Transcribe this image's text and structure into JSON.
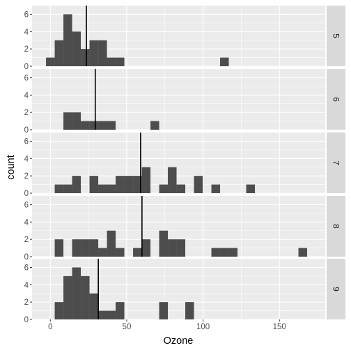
{
  "chart_data": {
    "type": "histogram",
    "facet_direction": "rows",
    "xlabel": "Ozone",
    "ylabel": "count",
    "xlim": [
      -12,
      180
    ],
    "x_ticks": [
      0,
      50,
      100,
      150
    ],
    "y_ticks": [
      0,
      2,
      4,
      6
    ],
    "ylim": [
      0,
      7
    ],
    "bin_width": 5.7,
    "colors": {
      "bar": "#4d4d4d",
      "panel_bg": "#ebebeb",
      "grid": "#ffffff",
      "strip_bg": "#d9d9d9",
      "mean_line": "#000000",
      "text": "#000000",
      "tick_text": "#4d4d4d"
    },
    "panels": [
      {
        "strip_label": "5",
        "mean": 23.6,
        "bins": [
          {
            "x": 0,
            "count": 1
          },
          {
            "x": 5.7,
            "count": 3
          },
          {
            "x": 11.4,
            "count": 6
          },
          {
            "x": 17.1,
            "count": 4
          },
          {
            "x": 22.8,
            "count": 2
          },
          {
            "x": 28.5,
            "count": 3
          },
          {
            "x": 34.2,
            "count": 3
          },
          {
            "x": 39.9,
            "count": 1
          },
          {
            "x": 45.6,
            "count": 1
          },
          {
            "x": 114.0,
            "count": 1
          }
        ]
      },
      {
        "strip_label": "6",
        "mean": 29.4,
        "bins": [
          {
            "x": 11.4,
            "count": 2
          },
          {
            "x": 17.1,
            "count": 2
          },
          {
            "x": 22.8,
            "count": 1
          },
          {
            "x": 28.5,
            "count": 1
          },
          {
            "x": 34.2,
            "count": 1
          },
          {
            "x": 39.9,
            "count": 1
          },
          {
            "x": 68.4,
            "count": 1
          }
        ]
      },
      {
        "strip_label": "7",
        "mean": 59.1,
        "bins": [
          {
            "x": 5.7,
            "count": 1
          },
          {
            "x": 11.4,
            "count": 1
          },
          {
            "x": 17.1,
            "count": 2
          },
          {
            "x": 28.5,
            "count": 2
          },
          {
            "x": 34.2,
            "count": 1
          },
          {
            "x": 39.9,
            "count": 1
          },
          {
            "x": 45.6,
            "count": 2
          },
          {
            "x": 51.3,
            "count": 2
          },
          {
            "x": 57.0,
            "count": 2
          },
          {
            "x": 62.7,
            "count": 3
          },
          {
            "x": 74.1,
            "count": 1
          },
          {
            "x": 79.8,
            "count": 3
          },
          {
            "x": 85.5,
            "count": 1
          },
          {
            "x": 96.9,
            "count": 2
          },
          {
            "x": 108.3,
            "count": 1
          },
          {
            "x": 131.1,
            "count": 1
          }
        ]
      },
      {
        "strip_label": "8",
        "mean": 60.0,
        "bins": [
          {
            "x": 5.7,
            "count": 2
          },
          {
            "x": 17.1,
            "count": 2
          },
          {
            "x": 22.8,
            "count": 2
          },
          {
            "x": 28.5,
            "count": 2
          },
          {
            "x": 34.2,
            "count": 1
          },
          {
            "x": 39.9,
            "count": 3
          },
          {
            "x": 45.6,
            "count": 1
          },
          {
            "x": 57.0,
            "count": 1
          },
          {
            "x": 62.7,
            "count": 2
          },
          {
            "x": 74.1,
            "count": 3
          },
          {
            "x": 79.8,
            "count": 2
          },
          {
            "x": 85.5,
            "count": 2
          },
          {
            "x": 108.3,
            "count": 1
          },
          {
            "x": 114.0,
            "count": 1
          },
          {
            "x": 119.7,
            "count": 1
          },
          {
            "x": 165.3,
            "count": 1
          }
        ]
      },
      {
        "strip_label": "9",
        "mean": 31.4,
        "bins": [
          {
            "x": 5.7,
            "count": 2
          },
          {
            "x": 11.4,
            "count": 5
          },
          {
            "x": 17.1,
            "count": 6
          },
          {
            "x": 22.8,
            "count": 5
          },
          {
            "x": 28.5,
            "count": 3
          },
          {
            "x": 34.2,
            "count": 1
          },
          {
            "x": 39.9,
            "count": 1
          },
          {
            "x": 45.6,
            "count": 2
          },
          {
            "x": 74.1,
            "count": 2
          },
          {
            "x": 91.2,
            "count": 2
          }
        ]
      }
    ]
  }
}
